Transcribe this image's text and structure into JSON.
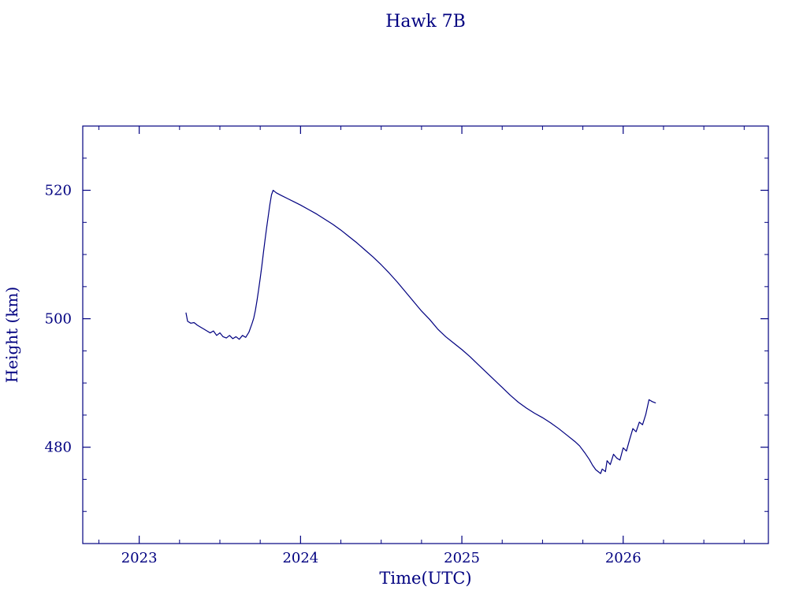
{
  "chart_data": {
    "type": "line",
    "title": "Hawk 7B",
    "xlabel": "Time(UTC)",
    "ylabel": "Height (km)",
    "xlim": [
      2022.65,
      2026.9
    ],
    "ylim": [
      465,
      530
    ],
    "xticks": [
      2023,
      2024,
      2025,
      2026
    ],
    "xtick_labels": [
      "2023",
      "2024",
      "2025",
      "2026"
    ],
    "x_minor_step": 0.25,
    "yticks": [
      480,
      500,
      520
    ],
    "ytick_labels": [
      "480",
      "500",
      "520"
    ],
    "y_minor_step": 5,
    "grid": false,
    "legend": "none",
    "line_color": "#000080",
    "axis_color": "#000080",
    "text_color": "#000080",
    "background_color": "#ffffff",
    "series": [
      {
        "name": "height",
        "x": [
          2023.29,
          2023.3,
          2023.32,
          2023.34,
          2023.36,
          2023.38,
          2023.4,
          2023.42,
          2023.44,
          2023.46,
          2023.48,
          2023.5,
          2023.52,
          2023.54,
          2023.56,
          2023.58,
          2023.6,
          2023.62,
          2023.64,
          2023.66,
          2023.68,
          2023.69,
          2023.7,
          2023.71,
          2023.72,
          2023.73,
          2023.74,
          2023.75,
          2023.76,
          2023.77,
          2023.78,
          2023.79,
          2023.8,
          2023.81,
          2023.82,
          2023.83,
          2023.85,
          2023.88,
          2023.92,
          2023.96,
          2024.0,
          2024.05,
          2024.1,
          2024.15,
          2024.2,
          2024.25,
          2024.3,
          2024.35,
          2024.4,
          2024.45,
          2024.5,
          2024.55,
          2024.6,
          2024.65,
          2024.7,
          2024.75,
          2024.8,
          2024.85,
          2024.9,
          2024.95,
          2025.0,
          2025.05,
          2025.1,
          2025.15,
          2025.2,
          2025.25,
          2025.3,
          2025.35,
          2025.4,
          2025.45,
          2025.5,
          2025.55,
          2025.6,
          2025.65,
          2025.7,
          2025.73,
          2025.76,
          2025.79,
          2025.81,
          2025.83,
          2025.85,
          2025.86,
          2025.87,
          2025.89,
          2025.9,
          2025.92,
          2025.94,
          2025.96,
          2025.98,
          2026.0,
          2026.02,
          2026.04,
          2026.06,
          2026.08,
          2026.1,
          2026.12,
          2026.14,
          2026.16,
          2026.18,
          2026.2
        ],
        "y": [
          500.9,
          499.6,
          499.3,
          499.4,
          499.0,
          498.7,
          498.4,
          498.1,
          497.8,
          498.1,
          497.4,
          497.8,
          497.2,
          497.0,
          497.4,
          496.9,
          497.2,
          496.8,
          497.4,
          497.1,
          497.9,
          498.6,
          499.3,
          500.1,
          501.3,
          502.8,
          504.5,
          506.3,
          508.2,
          510.3,
          512.3,
          514.2,
          516.0,
          517.8,
          519.3,
          520.0,
          519.6,
          519.2,
          518.7,
          518.2,
          517.7,
          517.0,
          516.3,
          515.5,
          514.7,
          513.8,
          512.8,
          511.8,
          510.7,
          509.6,
          508.4,
          507.1,
          505.7,
          504.2,
          502.7,
          501.2,
          499.9,
          498.4,
          497.2,
          496.2,
          495.2,
          494.1,
          492.9,
          491.7,
          490.5,
          489.3,
          488.1,
          487.0,
          486.1,
          485.3,
          484.6,
          483.8,
          482.9,
          481.9,
          480.9,
          480.2,
          479.2,
          478.1,
          477.2,
          476.5,
          476.1,
          475.9,
          476.6,
          476.2,
          477.9,
          477.3,
          478.9,
          478.3,
          478.0,
          479.9,
          479.4,
          481.2,
          482.9,
          482.4,
          483.9,
          483.5,
          485.1,
          487.4,
          487.1,
          486.9
        ]
      }
    ]
  }
}
